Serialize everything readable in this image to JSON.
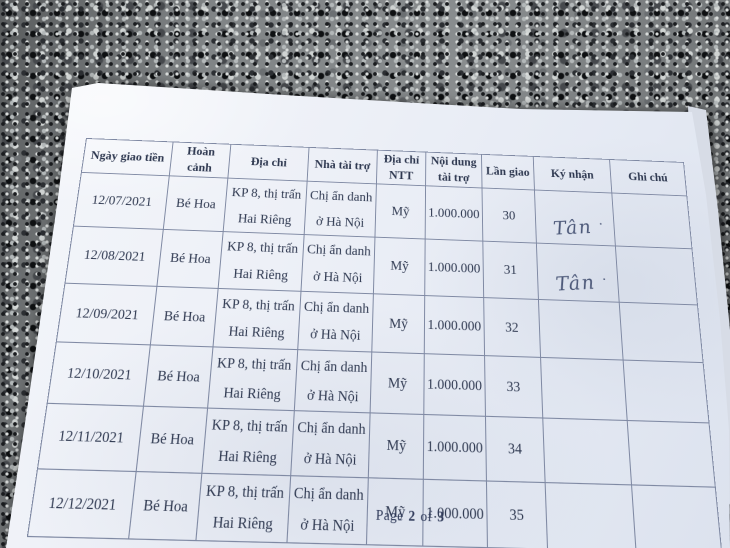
{
  "colors": {
    "ink": "#2e3850",
    "table_line": "#7f89a3",
    "signature": "#4c5878",
    "paper": "#edf0f7"
  },
  "table": {
    "col_names": [
      "ngay-giao-tien",
      "hoan-canh",
      "dia-chi",
      "nha-tai-tro",
      "dia-chi-ntt",
      "noi-dung-tai-tro",
      "lan-giao",
      "ky-nhan",
      "ghi-chu"
    ],
    "headers": [
      "Ngày giao tiền",
      "Hoàn cảnh",
      "Địa chỉ",
      "Nhà tài trợ",
      "Địa chỉ NTT",
      "Nội dung tài trợ",
      "Lần giao",
      "Ký nhận",
      "Ghi chú"
    ],
    "rows": [
      {
        "cells": [
          "12/07/2021",
          "Bé Hoa",
          "KP 8, thị trấn Hai Riêng",
          "Chị ẩn danh ở Hà Nội",
          "Mỹ",
          "1.000.000",
          "30",
          "Tân",
          ""
        ]
      },
      {
        "cells": [
          "12/08/2021",
          "Bé Hoa",
          "KP 8, thị trấn Hai Riêng",
          "Chị ẩn danh ở Hà Nội",
          "Mỹ",
          "1.000.000",
          "31",
          "Tân",
          ""
        ]
      },
      {
        "cells": [
          "12/09/2021",
          "Bé Hoa",
          "KP 8, thị trấn Hai Riêng",
          "Chị ẩn danh ở Hà Nội",
          "Mỹ",
          "1.000.000",
          "32",
          "",
          ""
        ]
      },
      {
        "cells": [
          "12/10/2021",
          "Bé Hoa",
          "KP 8, thị trấn Hai Riêng",
          "Chị ẩn danh ở Hà Nội",
          "Mỹ",
          "1.000.000",
          "33",
          "",
          ""
        ]
      },
      {
        "cells": [
          "12/11/2021",
          "Bé Hoa",
          "KP 8, thị trấn Hai Riêng",
          "Chị ẩn danh ở Hà Nội",
          "Mỹ",
          "1.000.000",
          "34",
          "",
          ""
        ]
      },
      {
        "cells": [
          "12/12/2021",
          "Bé Hoa",
          "KP 8, thị trấn Hai Riêng",
          "Chị ẩn danh ở Hà Nội",
          "Mỹ",
          "1.000.000",
          "35",
          "",
          ""
        ]
      }
    ]
  },
  "footer": {
    "word_page": "Page",
    "current": "2",
    "word_of": "of",
    "total": "3"
  }
}
